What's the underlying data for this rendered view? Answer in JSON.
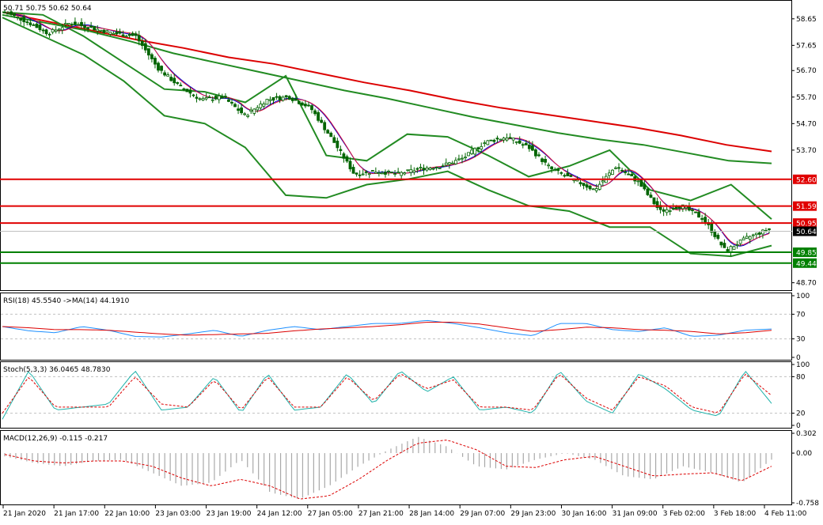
{
  "header": {
    "symbol_info": "50.71 50.75 50.62 50.64",
    "rsi_label": "RSI(18) 45.5540  ->MA(14) 44.1910",
    "stoch_label": "Stoch(5,3,3) 36.0465 48.7830",
    "macd_label": "MACD(12,26,9) -0.115 -0.217"
  },
  "colors": {
    "candle": "#006400",
    "bollinger": "#228B22",
    "ma_long": "#DC0000",
    "ma_mid": "#228B22",
    "ma_fast_red": "#DC143C",
    "ma_fast_blue": "#0000CD",
    "resistance": "#E00000",
    "support": "#008000",
    "rsi_line": "#1E90FF",
    "rsi_ma": "#DC0000",
    "stoch_main": "#20B2AA",
    "stoch_signal": "#DC0000",
    "macd_hist": "#A9A9A9",
    "macd_signal": "#DC0000",
    "current_price_bg": "#000000"
  },
  "chart_data": [
    {
      "type": "candlestick",
      "pane": "price",
      "y_axis_ticks": [
        "58.65",
        "57.65",
        "56.70",
        "55.70",
        "54.70",
        "53.70",
        "52.60",
        "51.59",
        "50.95",
        "50.64",
        "49.85",
        "49.44",
        "48.70"
      ],
      "ylim": [
        48.45,
        59.3
      ],
      "x_axis_labels": [
        "21 Jan 2020",
        "21 Jan 17:00",
        "22 Jan 10:00",
        "23 Jan 03:00",
        "23 Jan 19:00",
        "24 Jan 12:00",
        "27 Jan 05:00",
        "27 Jan 21:00",
        "28 Jan 14:00",
        "29 Jan 07:00",
        "29 Jan 23:00",
        "30 Jan 16:00",
        "31 Jan 09:00",
        "3 Feb 02:00",
        "3 Feb 18:00",
        "4 Feb 11:00"
      ],
      "last_price": 50.64,
      "resistance_levels": [
        52.6,
        51.59,
        50.95
      ],
      "support_levels": [
        49.85,
        49.44
      ],
      "close_path": [
        58.9,
        58.55,
        58.1,
        58.5,
        58.3,
        58.1,
        58.0,
        56.8,
        56.1,
        55.6,
        55.7,
        55.0,
        55.6,
        55.7,
        55.3,
        54.1,
        52.8,
        52.9,
        52.8,
        53.0,
        53.1,
        53.4,
        54.0,
        54.2,
        53.8,
        53.0,
        52.6,
        52.2,
        53.1,
        52.5,
        51.4,
        51.6,
        51.1,
        49.9,
        50.4,
        50.72
      ],
      "sma200_path": [
        58.9,
        58.55,
        58.2,
        57.85,
        57.55,
        57.2,
        56.95,
        56.6,
        56.25,
        55.95,
        55.6,
        55.3,
        55.05,
        54.8,
        54.55,
        54.25,
        53.9,
        53.65
      ],
      "sma100_path": [
        58.8,
        58.5,
        58.2,
        57.8,
        57.35,
        57.0,
        56.65,
        56.3,
        55.95,
        55.65,
        55.3,
        54.95,
        54.65,
        54.35,
        54.1,
        53.9,
        53.6,
        53.3,
        53.2
      ],
      "boll_upper_path": [
        58.9,
        58.8,
        58.0,
        57.0,
        56.0,
        55.9,
        55.5,
        56.5,
        53.5,
        53.3,
        54.3,
        54.2,
        53.5,
        52.7,
        53.1,
        53.7,
        52.2,
        51.8,
        52.4,
        51.1
      ],
      "boll_lower_path": [
        58.7,
        58.0,
        57.3,
        56.3,
        55.0,
        54.7,
        53.8,
        52.0,
        51.9,
        52.4,
        52.6,
        52.9,
        52.2,
        51.6,
        51.4,
        50.8,
        50.8,
        49.8,
        49.7,
        50.1
      ]
    },
    {
      "type": "line",
      "pane": "rsi",
      "title": "RSI(18)",
      "ylim": [
        0,
        100
      ],
      "y_axis_ticks": [
        "100",
        "70",
        "30",
        "0"
      ],
      "series": [
        {
          "name": "RSI(18)",
          "values": [
            50,
            43,
            40,
            50,
            44,
            34,
            33,
            38,
            44,
            34,
            44,
            50,
            45,
            50,
            55,
            55,
            60,
            55,
            48,
            40,
            35,
            55,
            55,
            45,
            42,
            48,
            34,
            36,
            44,
            46
          ]
        },
        {
          "name": "MA(14)",
          "values": [
            50,
            48,
            45,
            45,
            44,
            41,
            38,
            36,
            37,
            38,
            39,
            43,
            46,
            48,
            50,
            53,
            57,
            57,
            54,
            48,
            42,
            45,
            49,
            48,
            45,
            44,
            42,
            38,
            40,
            44
          ]
        }
      ]
    },
    {
      "type": "line",
      "pane": "stoch",
      "title": "Stoch(5,3,3)",
      "ylim": [
        0,
        100
      ],
      "y_axis_ticks": [
        "100",
        "80",
        "20",
        "0"
      ],
      "series": [
        {
          "name": "Stoch",
          "values": [
            10,
            90,
            25,
            30,
            35,
            90,
            25,
            30,
            80,
            20,
            85,
            25,
            30,
            85,
            35,
            90,
            55,
            80,
            25,
            30,
            20,
            90,
            40,
            20,
            85,
            60,
            25,
            15,
            90,
            36
          ]
        },
        {
          "name": "Signal",
          "values": [
            20,
            80,
            30,
            30,
            30,
            80,
            35,
            30,
            75,
            25,
            80,
            30,
            30,
            80,
            40,
            85,
            60,
            75,
            30,
            30,
            25,
            85,
            45,
            25,
            80,
            65,
            30,
            20,
            85,
            49
          ]
        }
      ]
    },
    {
      "type": "bar",
      "pane": "macd",
      "title": "MACD(12,26,9)",
      "ylim": [
        -0.758,
        0.302
      ],
      "y_axis_ticks": [
        "0.302",
        "0.00",
        "-0.758"
      ],
      "series": [
        {
          "name": "MACD",
          "values": [
            -0.05,
            -0.15,
            -0.2,
            -0.12,
            -0.1,
            -0.3,
            -0.5,
            -0.45,
            -0.1,
            -0.6,
            -0.7,
            -0.5,
            -0.2,
            0.05,
            0.25,
            0.1,
            -0.2,
            -0.25,
            -0.1,
            0.0,
            -0.1,
            -0.35,
            -0.4,
            -0.2,
            -0.3,
            -0.45,
            -0.1
          ]
        },
        {
          "name": "Signal",
          "values": [
            -0.02,
            -0.12,
            -0.15,
            -0.12,
            -0.12,
            -0.2,
            -0.38,
            -0.5,
            -0.4,
            -0.5,
            -0.7,
            -0.65,
            -0.4,
            -0.1,
            0.15,
            0.2,
            0.05,
            -0.2,
            -0.22,
            -0.1,
            -0.05,
            -0.2,
            -0.35,
            -0.32,
            -0.3,
            -0.42,
            -0.2
          ]
        }
      ]
    }
  ]
}
